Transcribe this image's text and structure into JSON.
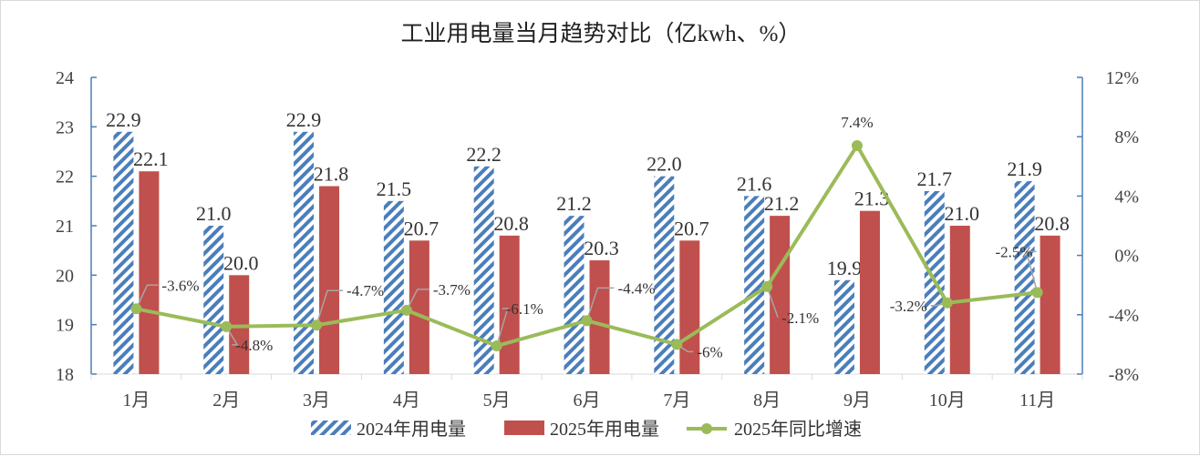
{
  "chart_data": {
    "type": "bar",
    "title": "工业用电量当月趋势对比（亿kwh、%）",
    "categories": [
      "1月",
      "2月",
      "3月",
      "4月",
      "5月",
      "6月",
      "7月",
      "8月",
      "9月",
      "10月",
      "11月"
    ],
    "series": [
      {
        "name": "2024年用电量",
        "type": "bar",
        "axis": "left",
        "color": "#4a7ebb",
        "values": [
          22.9,
          21.0,
          22.9,
          21.5,
          22.2,
          21.2,
          22.0,
          21.6,
          19.9,
          21.7,
          21.9
        ],
        "labels": [
          "22.9",
          "21.0",
          "22.9",
          "21.5",
          "22.2",
          "21.2",
          "22.0",
          "21.6",
          "19.9",
          "21.7",
          "21.9"
        ]
      },
      {
        "name": "2025年用电量",
        "type": "bar",
        "axis": "left",
        "color": "#c0504d",
        "values": [
          22.1,
          20.0,
          21.8,
          20.7,
          20.8,
          20.3,
          20.7,
          21.2,
          21.3,
          21.0,
          20.8
        ],
        "labels": [
          "22.1",
          "20.0",
          "21.8",
          "20.7",
          "20.8",
          "20.3",
          "20.7",
          "21.2",
          "21.3",
          "21.0",
          "20.8"
        ]
      },
      {
        "name": "2025年同比增速",
        "type": "line",
        "axis": "right",
        "color": "#9bbb59",
        "values": [
          -3.6,
          -4.8,
          -4.7,
          -3.7,
          -6.1,
          -4.4,
          -6.0,
          -2.1,
          7.4,
          -3.2,
          -2.5
        ],
        "labels": [
          "-3.6%",
          "-4.8%",
          "-4.7%",
          "-3.7%",
          "-6.1%",
          "-4.4%",
          "-6%",
          "-2.1%",
          "7.4%",
          "-3.2%",
          "-2.5%"
        ]
      }
    ],
    "yleft": {
      "ylim": [
        18,
        24
      ],
      "ticks": [
        "18",
        "19",
        "20",
        "21",
        "22",
        "23",
        "24"
      ]
    },
    "yright": {
      "ylim": [
        -8,
        12
      ],
      "ticks": [
        "-8%",
        "-4%",
        "0%",
        "4%",
        "8%",
        "12%"
      ]
    },
    "legend": "bottom",
    "grid": false
  }
}
